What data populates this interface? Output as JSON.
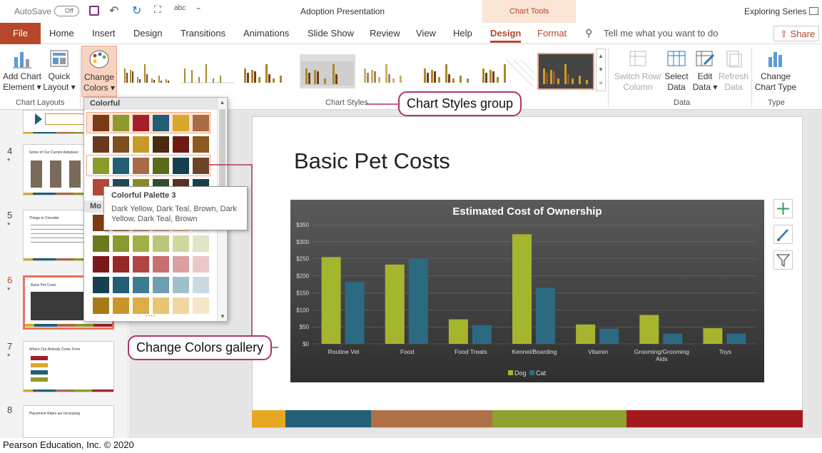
{
  "titlebar": {
    "autosave_label": "AutoSave",
    "autosave_state": "Off",
    "doc_title": "Adoption Presentation",
    "context_tools": "Chart Tools",
    "user": "Exploring Series"
  },
  "tabs": {
    "file": "File",
    "home": "Home",
    "insert": "Insert",
    "design": "Design",
    "transitions": "Transitions",
    "animations": "Animations",
    "slideshow": "Slide Show",
    "review": "Review",
    "view": "View",
    "help": "Help",
    "chart_design": "Design",
    "chart_format": "Format",
    "tell_me": "Tell me what you want to do",
    "share": "Share"
  },
  "ribbon": {
    "add_chart_element": [
      "Add Chart",
      "Element ▾"
    ],
    "quick_layout": [
      "Quick",
      "Layout ▾"
    ],
    "change_colors": [
      "Change",
      "Colors ▾"
    ],
    "group_chart_layouts": "Chart Layouts",
    "group_chart_styles": "Chart Styles",
    "switch_row_column": [
      "Switch Row/",
      "Column"
    ],
    "select_data": [
      "Select",
      "Data"
    ],
    "edit_data": [
      "Edit",
      "Data ▾"
    ],
    "refresh_data": [
      "Refresh",
      "Data"
    ],
    "group_data": "Data",
    "change_chart_type": [
      "Change",
      "Chart Type"
    ],
    "group_type": "Type"
  },
  "gallery": {
    "section_colorful": "Colorful",
    "section_monochromatic": "Mo",
    "colorful_rows": [
      [
        "#7a3a14",
        "#8e9a2a",
        "#a3202a",
        "#235e74",
        "#d9a82a",
        "#a76b45"
      ],
      [
        "#6b3a1c",
        "#7e5020",
        "#c89a2a",
        "#4a2a10",
        "#6e1a14",
        "#8a5a20"
      ],
      [
        "#8e9a2a",
        "#235e74",
        "#a76b45",
        "#5a6a18",
        "#17404e",
        "#6b4328"
      ],
      [
        "#b5473a",
        "#1e4a55",
        "#8a8a2a",
        "#2f4f2f",
        "#5a3020",
        "#17404e"
      ]
    ],
    "mono_rows": [
      [
        "#7a3a14",
        "#a35a2a",
        "#c07a40",
        "#d49a6a",
        "#e6bc98",
        "#f0d8c0"
      ],
      [
        "#6b7a1e",
        "#8a9a2e",
        "#a3b048",
        "#bcc678",
        "#d0d8a0",
        "#e0e6c4"
      ],
      [
        "#7a1a1a",
        "#962828",
        "#b24444",
        "#c87070",
        "#dca0a0",
        "#ebc8c8"
      ],
      [
        "#17404e",
        "#235e74",
        "#3e7c92",
        "#6e9eb0",
        "#9ebfcc",
        "#c8dbe3"
      ],
      [
        "#a87a18",
        "#c8962a",
        "#dcae48",
        "#e8c474",
        "#f0d6a0",
        "#f6e6c8"
      ]
    ],
    "more": "• • • •"
  },
  "tooltip": {
    "title": "Colorful Palette 3",
    "description": "Dark Yellow, Dark Teal, Brown, Dark Yellow, Dark Teal, Brown"
  },
  "callouts": {
    "chart_styles": "Chart Styles group",
    "change_colors": "Change Colors gallery"
  },
  "slides": [
    {
      "num": "4",
      "title": "Some of Our Current Adoptees"
    },
    {
      "num": "5",
      "title": "Things to Consider"
    },
    {
      "num": "6",
      "title": "Basic Pet Costs"
    },
    {
      "num": "7",
      "title": "Where Our Animals Come From"
    },
    {
      "num": "8",
      "title": "Placement Rates are Increasing"
    }
  ],
  "slide": {
    "title": "Basic Pet Costs"
  },
  "chart_data": {
    "type": "bar",
    "title": "Estimated Cost of Ownership",
    "categories": [
      "Routine Vet",
      "Food",
      "Food Treats",
      "Kennel/Boarding",
      "Vitamin",
      "Grooming/Grooming Aids",
      "Toys"
    ],
    "series": [
      {
        "name": "Dog",
        "values": [
          255,
          233,
          72,
          322,
          57,
          85,
          46
        ]
      },
      {
        "name": "Cat",
        "values": [
          182,
          250,
          55,
          165,
          45,
          30,
          30
        ]
      }
    ],
    "yticks": [
      "$0",
      "$50",
      "$100",
      "$150",
      "$200",
      "$250",
      "$300",
      "$350"
    ],
    "ylim": [
      0,
      350
    ],
    "colors": {
      "Dog": "#a6b52e",
      "Cat": "#2c6a82"
    }
  },
  "copyright": "Pearson Education, Inc. © 2020"
}
